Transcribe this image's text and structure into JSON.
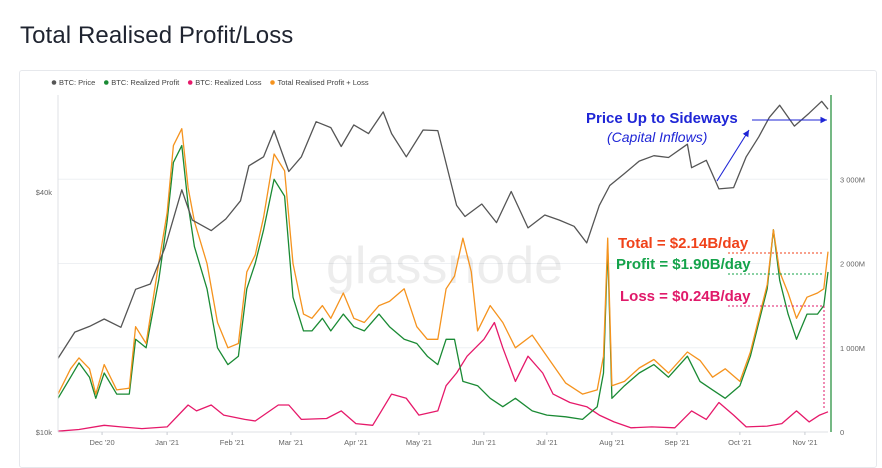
{
  "page": {
    "title": "Total Realised Profit/Loss"
  },
  "watermark": "glassnode",
  "colors": {
    "price": "#555555",
    "profit": "#1a8a34",
    "loss": "#e6196a",
    "total": "#f5931e",
    "annotation_blue": "#1f26d6",
    "annotation_total": "#f0421a",
    "annotation_profit": "#14a34a",
    "annotation_loss": "#e01a6a"
  },
  "annotations": {
    "price_title": "Price Up to Sideways",
    "price_sub": "(Capital Inflows)",
    "total": "Total = $2.14B/day",
    "profit": "Profit = $1.90B/day",
    "loss": "Loss = $0.24B/day"
  },
  "chart_data": {
    "type": "line",
    "title": "Total Realised Profit/Loss",
    "legend_position": "top-left",
    "grid": true,
    "x_labels": [
      "Dec '20",
      "Jan '21",
      "Feb '21",
      "Mar '21",
      "Apr '21",
      "May '21",
      "Jun '21",
      "Jul '21",
      "Aug '21",
      "Sep '21",
      "Oct '21",
      "Nov '21"
    ],
    "x_start": "2020-11-10",
    "x_end": "2021-11-12",
    "y_left": {
      "scale": "log",
      "ticks": [
        "$10k",
        "$40k"
      ],
      "tick_values": [
        10000,
        40000
      ],
      "range": [
        10000,
        70000
      ]
    },
    "y_right": {
      "scale": "linear",
      "ticks": [
        "0",
        "1 000M",
        "2 000M",
        "3 000M"
      ],
      "tick_values": [
        0,
        1000,
        2000,
        3000
      ],
      "unit": "M",
      "range": [
        0,
        4000
      ]
    },
    "series": [
      {
        "name": "BTC: Price",
        "axis": "left",
        "points": [
          [
            "2020-11-10",
            15300
          ],
          [
            "2020-11-18",
            17800
          ],
          [
            "2020-11-25",
            18400
          ],
          [
            "2020-12-02",
            19200
          ],
          [
            "2020-12-10",
            18300
          ],
          [
            "2020-12-17",
            22800
          ],
          [
            "2020-12-24",
            23500
          ],
          [
            "2020-12-31",
            29000
          ],
          [
            "2021-01-08",
            40500
          ],
          [
            "2021-01-13",
            34000
          ],
          [
            "2021-01-22",
            32000
          ],
          [
            "2021-01-29",
            34200
          ],
          [
            "2021-02-05",
            38000
          ],
          [
            "2021-02-09",
            46500
          ],
          [
            "2021-02-16",
            49000
          ],
          [
            "2021-02-21",
            57000
          ],
          [
            "2021-02-28",
            45000
          ],
          [
            "2021-03-06",
            49000
          ],
          [
            "2021-03-13",
            60000
          ],
          [
            "2021-03-20",
            58000
          ],
          [
            "2021-03-25",
            52000
          ],
          [
            "2021-03-31",
            58900
          ],
          [
            "2021-04-07",
            56000
          ],
          [
            "2021-04-14",
            63500
          ],
          [
            "2021-04-18",
            56000
          ],
          [
            "2021-04-25",
            49000
          ],
          [
            "2021-05-03",
            57200
          ],
          [
            "2021-05-10",
            57000
          ],
          [
            "2021-05-13",
            49500
          ],
          [
            "2021-05-19",
            37000
          ],
          [
            "2021-05-23",
            34700
          ],
          [
            "2021-05-31",
            37300
          ],
          [
            "2021-06-07",
            33500
          ],
          [
            "2021-06-14",
            40100
          ],
          [
            "2021-06-22",
            32500
          ],
          [
            "2021-06-30",
            35000
          ],
          [
            "2021-07-07",
            34000
          ],
          [
            "2021-07-14",
            32800
          ],
          [
            "2021-07-20",
            29800
          ],
          [
            "2021-07-26",
            37000
          ],
          [
            "2021-07-31",
            41500
          ],
          [
            "2021-08-07",
            44500
          ],
          [
            "2021-08-14",
            47800
          ],
          [
            "2021-08-21",
            49300
          ],
          [
            "2021-08-28",
            48800
          ],
          [
            "2021-09-06",
            52700
          ],
          [
            "2021-09-08",
            46000
          ],
          [
            "2021-09-15",
            48000
          ],
          [
            "2021-09-21",
            40700
          ],
          [
            "2021-09-28",
            41000
          ],
          [
            "2021-10-04",
            49000
          ],
          [
            "2021-10-10",
            55000
          ],
          [
            "2021-10-15",
            61500
          ],
          [
            "2021-10-20",
            66000
          ],
          [
            "2021-10-27",
            58500
          ],
          [
            "2021-11-03",
            63000
          ],
          [
            "2021-11-09",
            67500
          ],
          [
            "2021-11-12",
            64500
          ]
        ]
      },
      {
        "name": "BTC: Realized Profit",
        "axis": "right",
        "points": [
          [
            "2020-11-10",
            400
          ],
          [
            "2020-11-16",
            650
          ],
          [
            "2020-11-20",
            820
          ],
          [
            "2020-11-25",
            650
          ],
          [
            "2020-11-28",
            400
          ],
          [
            "2020-12-02",
            700
          ],
          [
            "2020-12-08",
            450
          ],
          [
            "2020-12-14",
            450
          ],
          [
            "2020-12-17",
            1100
          ],
          [
            "2020-12-22",
            1000
          ],
          [
            "2020-12-28",
            1800
          ],
          [
            "2021-01-01",
            2500
          ],
          [
            "2021-01-04",
            3200
          ],
          [
            "2021-01-08",
            3400
          ],
          [
            "2021-01-11",
            2700
          ],
          [
            "2021-01-14",
            2200
          ],
          [
            "2021-01-20",
            1700
          ],
          [
            "2021-01-25",
            1000
          ],
          [
            "2021-01-30",
            800
          ],
          [
            "2021-02-04",
            900
          ],
          [
            "2021-02-08",
            1700
          ],
          [
            "2021-02-12",
            2000
          ],
          [
            "2021-02-16",
            2400
          ],
          [
            "2021-02-21",
            3000
          ],
          [
            "2021-02-26",
            2800
          ],
          [
            "2021-03-02",
            1600
          ],
          [
            "2021-03-07",
            1200
          ],
          [
            "2021-03-11",
            1200
          ],
          [
            "2021-03-16",
            1350
          ],
          [
            "2021-03-20",
            1200
          ],
          [
            "2021-03-26",
            1400
          ],
          [
            "2021-03-31",
            1250
          ],
          [
            "2021-04-05",
            1200
          ],
          [
            "2021-04-12",
            1400
          ],
          [
            "2021-04-17",
            1250
          ],
          [
            "2021-04-24",
            1100
          ],
          [
            "2021-04-30",
            1050
          ],
          [
            "2021-05-05",
            900
          ],
          [
            "2021-05-10",
            800
          ],
          [
            "2021-05-14",
            1100
          ],
          [
            "2021-05-18",
            1100
          ],
          [
            "2021-05-22",
            600
          ],
          [
            "2021-05-29",
            550
          ],
          [
            "2021-06-04",
            400
          ],
          [
            "2021-06-10",
            300
          ],
          [
            "2021-06-16",
            400
          ],
          [
            "2021-06-24",
            250
          ],
          [
            "2021-07-01",
            200
          ],
          [
            "2021-07-10",
            180
          ],
          [
            "2021-07-18",
            150
          ],
          [
            "2021-07-25",
            300
          ],
          [
            "2021-07-28",
            700
          ],
          [
            "2021-07-30",
            2200
          ],
          [
            "2021-08-01",
            400
          ],
          [
            "2021-08-07",
            550
          ],
          [
            "2021-08-14",
            700
          ],
          [
            "2021-08-21",
            800
          ],
          [
            "2021-08-28",
            650
          ],
          [
            "2021-09-06",
            900
          ],
          [
            "2021-09-12",
            600
          ],
          [
            "2021-09-18",
            500
          ],
          [
            "2021-09-24",
            400
          ],
          [
            "2021-10-01",
            550
          ],
          [
            "2021-10-06",
            900
          ],
          [
            "2021-10-10",
            1300
          ],
          [
            "2021-10-14",
            1700
          ],
          [
            "2021-10-17",
            2400
          ],
          [
            "2021-10-20",
            1800
          ],
          [
            "2021-10-24",
            1400
          ],
          [
            "2021-10-28",
            1100
          ],
          [
            "2021-11-02",
            1400
          ],
          [
            "2021-11-07",
            1400
          ],
          [
            "2021-11-10",
            1500
          ],
          [
            "2021-11-12",
            1900
          ]
        ]
      },
      {
        "name": "BTC: Realized Loss",
        "axis": "right",
        "points": [
          [
            "2020-11-10",
            10
          ],
          [
            "2020-11-20",
            30
          ],
          [
            "2020-12-02",
            80
          ],
          [
            "2020-12-10",
            60
          ],
          [
            "2020-12-20",
            40
          ],
          [
            "2021-01-01",
            60
          ],
          [
            "2021-01-11",
            320
          ],
          [
            "2021-01-15",
            250
          ],
          [
            "2021-01-22",
            320
          ],
          [
            "2021-01-28",
            200
          ],
          [
            "2021-02-07",
            150
          ],
          [
            "2021-02-12",
            130
          ],
          [
            "2021-02-23",
            320
          ],
          [
            "2021-02-28",
            320
          ],
          [
            "2021-03-06",
            150
          ],
          [
            "2021-03-18",
            160
          ],
          [
            "2021-03-25",
            250
          ],
          [
            "2021-04-01",
            100
          ],
          [
            "2021-04-09",
            80
          ],
          [
            "2021-04-18",
            450
          ],
          [
            "2021-04-25",
            400
          ],
          [
            "2021-05-01",
            200
          ],
          [
            "2021-05-10",
            250
          ],
          [
            "2021-05-14",
            550
          ],
          [
            "2021-05-19",
            700
          ],
          [
            "2021-05-24",
            900
          ],
          [
            "2021-06-01",
            1100
          ],
          [
            "2021-06-06",
            1300
          ],
          [
            "2021-06-10",
            1000
          ],
          [
            "2021-06-16",
            600
          ],
          [
            "2021-06-22",
            900
          ],
          [
            "2021-06-29",
            700
          ],
          [
            "2021-07-04",
            450
          ],
          [
            "2021-07-12",
            350
          ],
          [
            "2021-07-20",
            300
          ],
          [
            "2021-07-26",
            200
          ],
          [
            "2021-08-02",
            120
          ],
          [
            "2021-08-10",
            50
          ],
          [
            "2021-08-20",
            60
          ],
          [
            "2021-08-31",
            50
          ],
          [
            "2021-09-08",
            250
          ],
          [
            "2021-09-15",
            150
          ],
          [
            "2021-09-21",
            350
          ],
          [
            "2021-09-28",
            200
          ],
          [
            "2021-10-04",
            60
          ],
          [
            "2021-10-14",
            70
          ],
          [
            "2021-10-21",
            100
          ],
          [
            "2021-10-28",
            250
          ],
          [
            "2021-11-03",
            120
          ],
          [
            "2021-11-08",
            200
          ],
          [
            "2021-11-12",
            240
          ]
        ]
      },
      {
        "name": "Total Realised Profit + Loss",
        "axis": "right",
        "points": [
          [
            "2020-11-10",
            450
          ],
          [
            "2020-11-16",
            750
          ],
          [
            "2020-11-20",
            880
          ],
          [
            "2020-11-25",
            750
          ],
          [
            "2020-11-28",
            450
          ],
          [
            "2020-12-02",
            800
          ],
          [
            "2020-12-08",
            500
          ],
          [
            "2020-12-14",
            520
          ],
          [
            "2020-12-17",
            1250
          ],
          [
            "2020-12-22",
            1050
          ],
          [
            "2020-12-28",
            2000
          ],
          [
            "2021-01-01",
            2600
          ],
          [
            "2021-01-04",
            3400
          ],
          [
            "2021-01-08",
            3600
          ],
          [
            "2021-01-11",
            2900
          ],
          [
            "2021-01-14",
            2500
          ],
          [
            "2021-01-20",
            2000
          ],
          [
            "2021-01-25",
            1300
          ],
          [
            "2021-01-30",
            1000
          ],
          [
            "2021-02-04",
            1050
          ],
          [
            "2021-02-08",
            1900
          ],
          [
            "2021-02-12",
            2100
          ],
          [
            "2021-02-16",
            2550
          ],
          [
            "2021-02-21",
            3300
          ],
          [
            "2021-02-26",
            3100
          ],
          [
            "2021-03-02",
            2000
          ],
          [
            "2021-03-07",
            1400
          ],
          [
            "2021-03-11",
            1350
          ],
          [
            "2021-03-16",
            1500
          ],
          [
            "2021-03-20",
            1350
          ],
          [
            "2021-03-26",
            1650
          ],
          [
            "2021-03-31",
            1350
          ],
          [
            "2021-04-05",
            1300
          ],
          [
            "2021-04-12",
            1500
          ],
          [
            "2021-04-17",
            1550
          ],
          [
            "2021-04-24",
            1700
          ],
          [
            "2021-04-30",
            1250
          ],
          [
            "2021-05-05",
            1100
          ],
          [
            "2021-05-10",
            1100
          ],
          [
            "2021-05-14",
            1700
          ],
          [
            "2021-05-18",
            1850
          ],
          [
            "2021-05-22",
            2300
          ],
          [
            "2021-05-26",
            1900
          ],
          [
            "2021-05-29",
            1200
          ],
          [
            "2021-06-04",
            1500
          ],
          [
            "2021-06-10",
            1300
          ],
          [
            "2021-06-16",
            1000
          ],
          [
            "2021-06-24",
            1150
          ],
          [
            "2021-07-01",
            900
          ],
          [
            "2021-07-10",
            580
          ],
          [
            "2021-07-18",
            450
          ],
          [
            "2021-07-25",
            500
          ],
          [
            "2021-07-28",
            900
          ],
          [
            "2021-07-30",
            2300
          ],
          [
            "2021-08-01",
            550
          ],
          [
            "2021-08-07",
            600
          ],
          [
            "2021-08-14",
            760
          ],
          [
            "2021-08-21",
            860
          ],
          [
            "2021-08-28",
            700
          ],
          [
            "2021-09-06",
            950
          ],
          [
            "2021-09-12",
            850
          ],
          [
            "2021-09-18",
            650
          ],
          [
            "2021-09-24",
            750
          ],
          [
            "2021-10-01",
            600
          ],
          [
            "2021-10-06",
            950
          ],
          [
            "2021-10-10",
            1350
          ],
          [
            "2021-10-14",
            1750
          ],
          [
            "2021-10-17",
            2400
          ],
          [
            "2021-10-20",
            1900
          ],
          [
            "2021-10-24",
            1650
          ],
          [
            "2021-10-28",
            1350
          ],
          [
            "2021-11-02",
            1600
          ],
          [
            "2021-11-07",
            1650
          ],
          [
            "2021-11-10",
            1700
          ],
          [
            "2021-11-12",
            2140
          ]
        ]
      }
    ]
  }
}
